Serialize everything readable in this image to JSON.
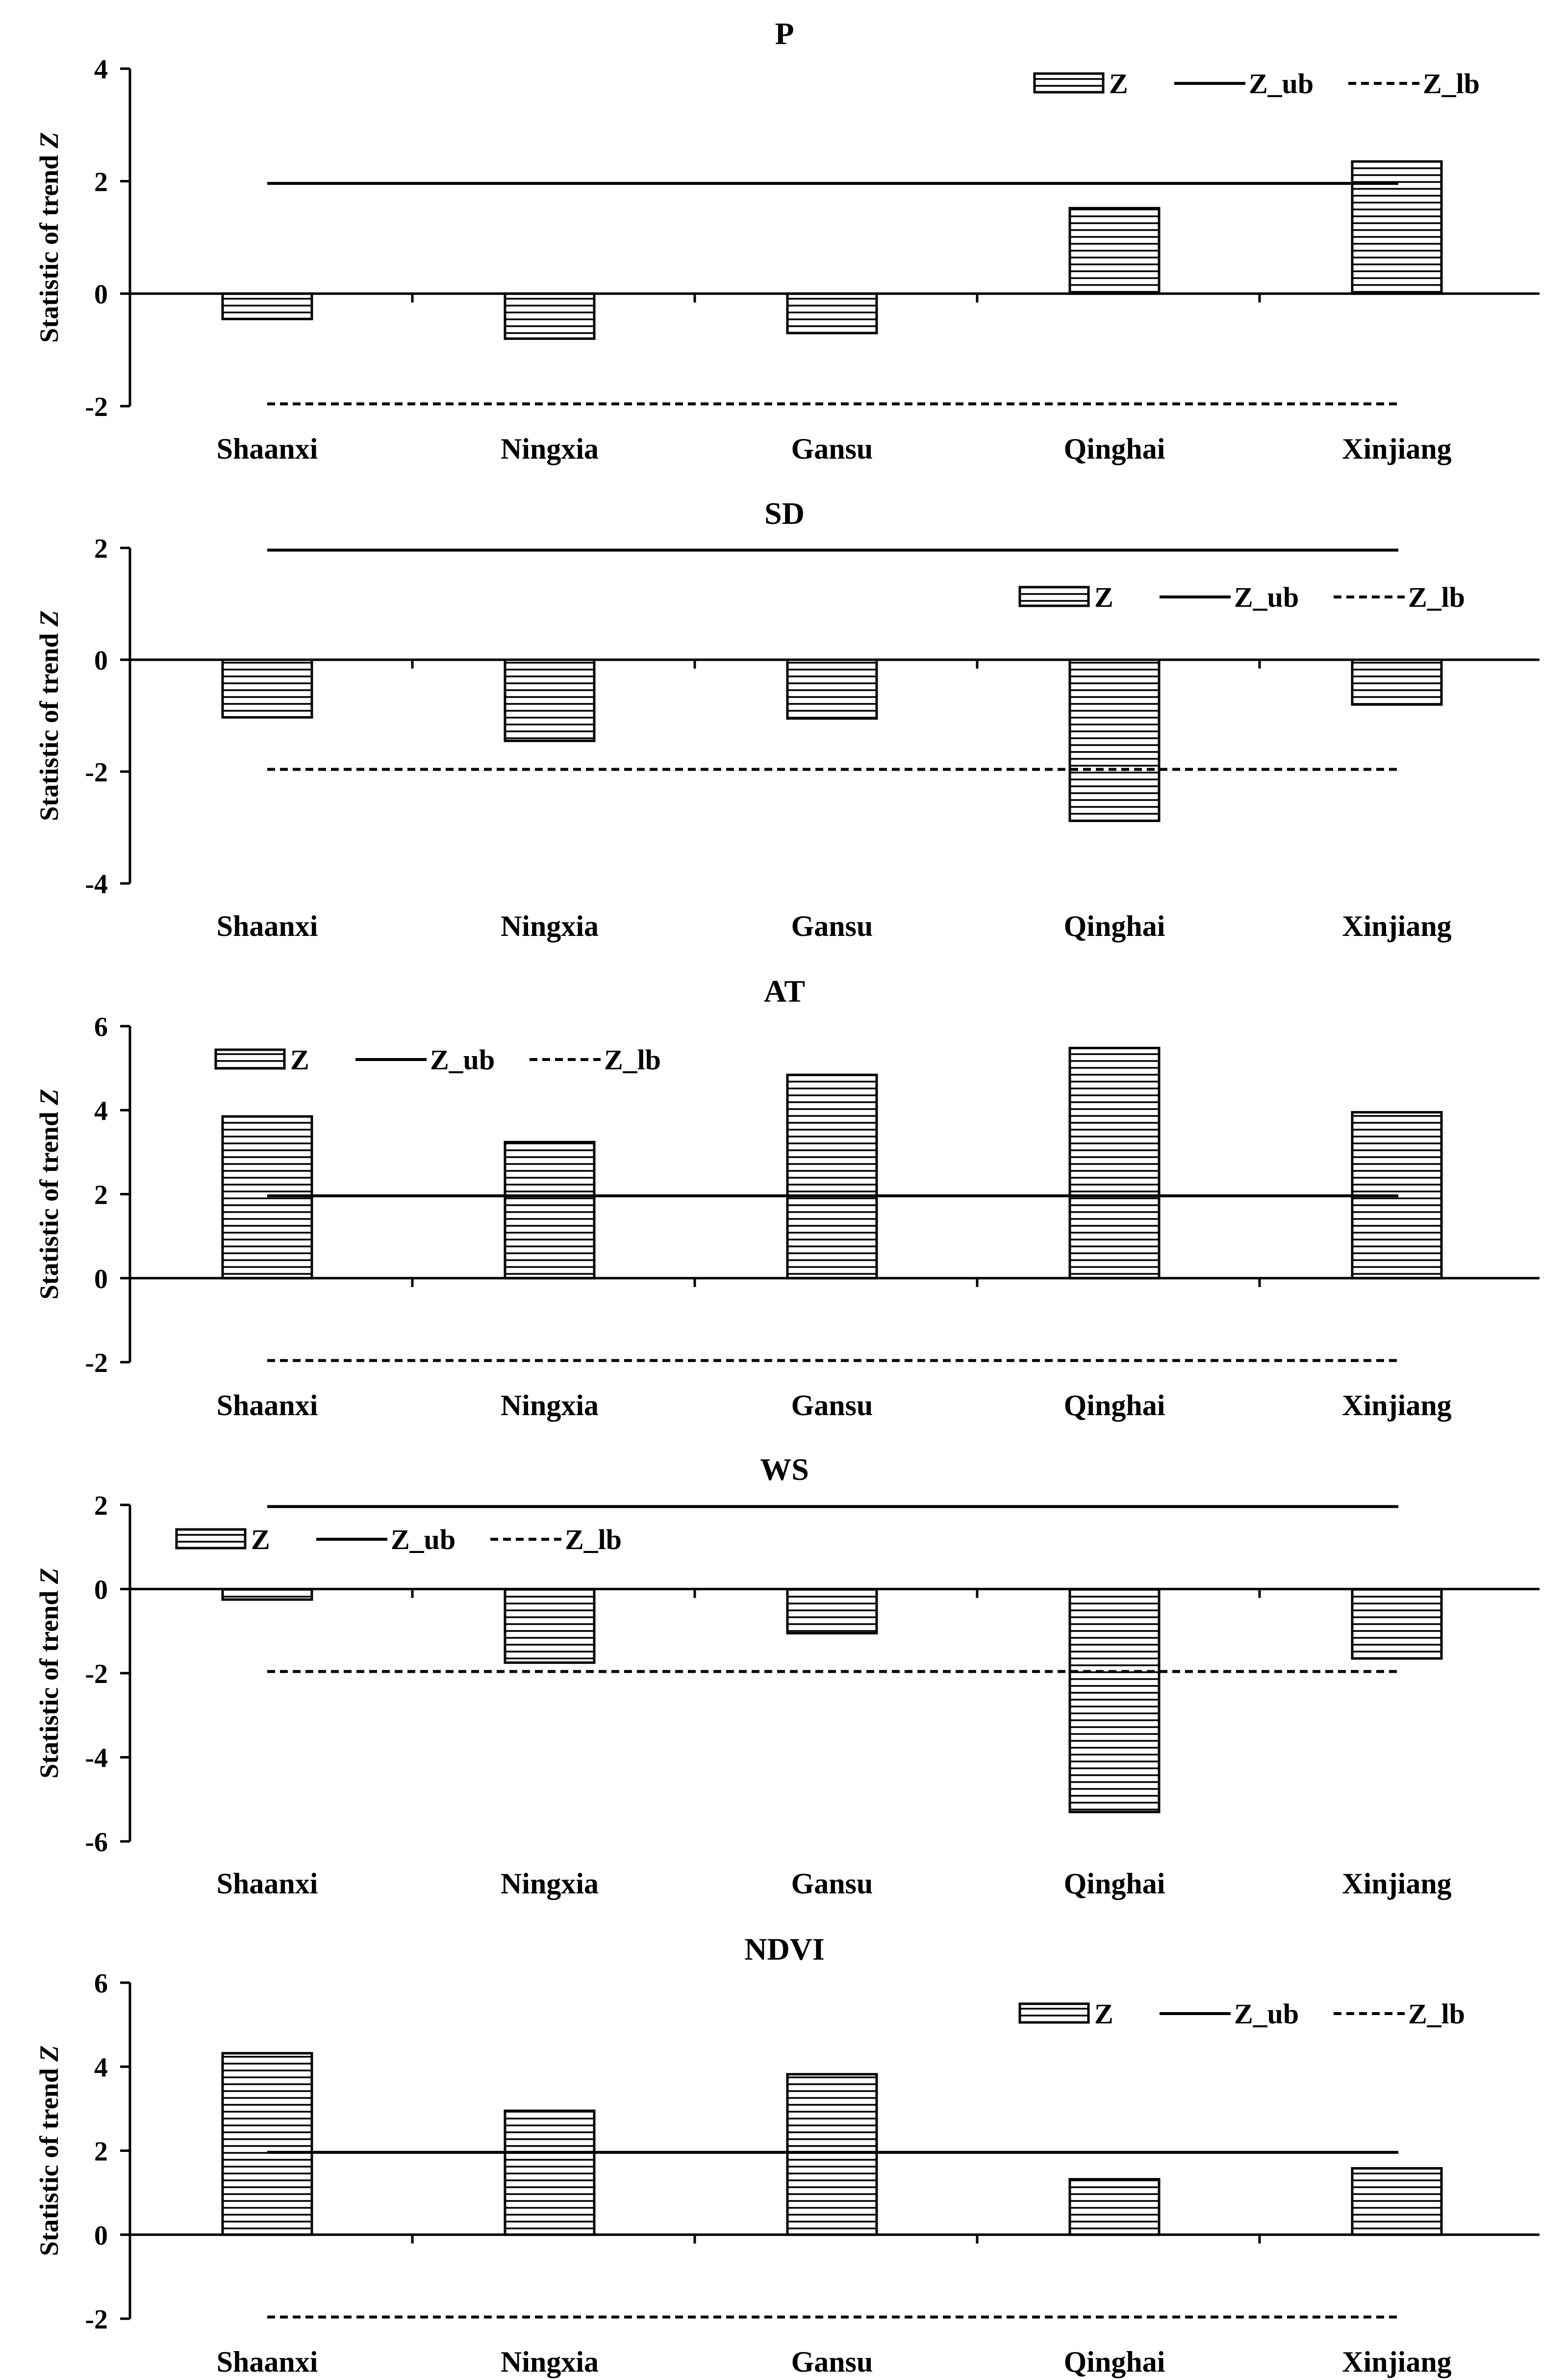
{
  "figure": {
    "legend_labels": {
      "bar": "Z",
      "upper": "Z_ub",
      "lower": "Z_lb"
    }
  },
  "chart_data": [
    {
      "type": "bar",
      "title": "P",
      "ylabel_prefix": "Statistic of trend ",
      "ylabel_var": "Z",
      "categories": [
        "Shaanxi",
        "Ningxia",
        "Gansu",
        "Qinghai",
        "Xinjiang"
      ],
      "series": [
        {
          "name": "Z",
          "values": [
            -0.45,
            -0.8,
            -0.7,
            1.52,
            2.35
          ]
        }
      ],
      "z_ub": 1.96,
      "z_lb": -1.96,
      "ylim": [
        -2,
        4
      ],
      "yticks": [
        -2,
        0,
        2,
        4
      ],
      "legend_position": "top-right"
    },
    {
      "type": "bar",
      "title": "SD",
      "ylabel_prefix": "Statistic of trend ",
      "ylabel_var": "Z",
      "categories": [
        "Shaanxi",
        "Ningxia",
        "Gansu",
        "Qinghai",
        "Xinjiang"
      ],
      "series": [
        {
          "name": "Z",
          "values": [
            -1.03,
            -1.45,
            -1.05,
            -2.88,
            -0.8
          ]
        }
      ],
      "z_ub": 1.96,
      "z_lb": -1.96,
      "ylim": [
        -4,
        2
      ],
      "yticks": [
        -4,
        -2,
        0,
        2
      ],
      "legend_position": "top-right"
    },
    {
      "type": "bar",
      "title": "AT",
      "ylabel_prefix": "Statistic of trend ",
      "ylabel_var": "Z",
      "categories": [
        "Shaanxi",
        "Ningxia",
        "Gansu",
        "Qinghai",
        "Xinjiang"
      ],
      "series": [
        {
          "name": "Z",
          "values": [
            3.85,
            3.24,
            4.84,
            5.48,
            3.95
          ]
        }
      ],
      "z_ub": 1.96,
      "z_lb": -1.96,
      "ylim": [
        -2,
        6
      ],
      "yticks": [
        -2,
        0,
        2,
        4,
        6
      ],
      "legend_position": "top-left"
    },
    {
      "type": "bar",
      "title": "WS",
      "ylabel_prefix": "Statistic of trend ",
      "ylabel_var": "Z",
      "categories": [
        "Shaanxi",
        "Ningxia",
        "Gansu",
        "Qinghai",
        "Xinjiang"
      ],
      "series": [
        {
          "name": "Z",
          "values": [
            -0.25,
            -1.75,
            -1.05,
            -5.3,
            -1.65
          ]
        }
      ],
      "z_ub": 1.96,
      "z_lb": -1.96,
      "ylim": [
        -6,
        2
      ],
      "yticks": [
        -6,
        -4,
        -2,
        0,
        2
      ],
      "legend_position": "top-left"
    },
    {
      "type": "bar",
      "title": "NDVI",
      "ylabel_prefix": "Statistic of trend ",
      "ylabel_var": "Z",
      "categories": [
        "Shaanxi",
        "Ningxia",
        "Gansu",
        "Qinghai",
        "Xinjiang"
      ],
      "series": [
        {
          "name": "Z",
          "values": [
            4.32,
            2.95,
            3.82,
            1.32,
            1.58
          ]
        }
      ],
      "z_ub": 1.96,
      "z_lb": -1.96,
      "ylim": [
        -2,
        6
      ],
      "yticks": [
        -2,
        0,
        2,
        4,
        6
      ],
      "legend_position": "top-right"
    }
  ]
}
